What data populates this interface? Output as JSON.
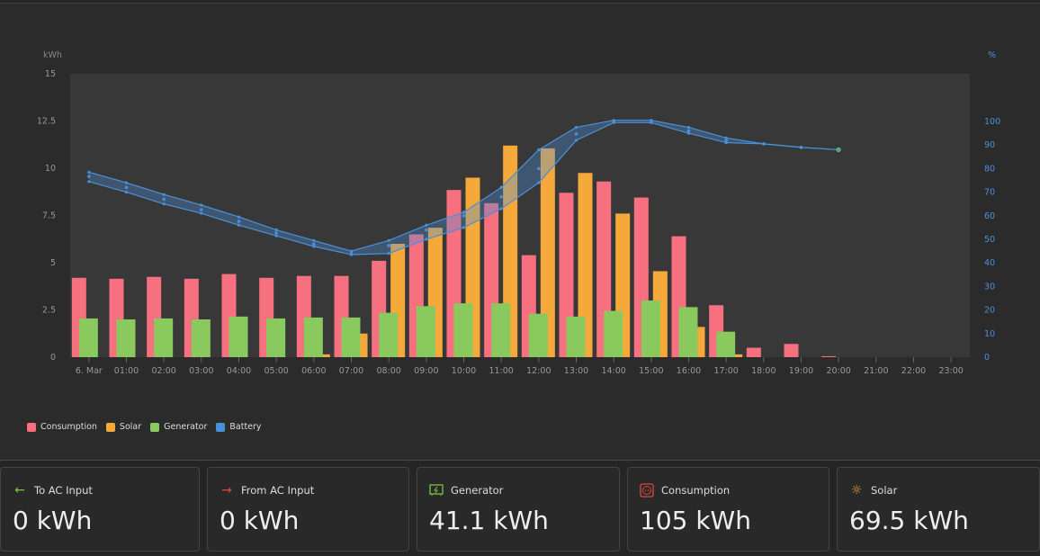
{
  "chart_data": {
    "type": "bar",
    "yleft_label": "kWh",
    "yright_label": "%",
    "yleft_ticks": [
      "0",
      "2.5",
      "5",
      "7.5",
      "10",
      "12.5",
      "15"
    ],
    "ylim": [
      0,
      15
    ],
    "yright_ticks": [
      "0",
      "10",
      "20",
      "30",
      "40",
      "50",
      "60",
      "70",
      "80",
      "90",
      "100"
    ],
    "yright_lim": [
      0,
      120
    ],
    "categories": [
      "6. Mar",
      "01:00",
      "02:00",
      "03:00",
      "04:00",
      "05:00",
      "06:00",
      "07:00",
      "08:00",
      "09:00",
      "10:00",
      "11:00",
      "12:00",
      "13:00",
      "14:00",
      "15:00",
      "16:00",
      "17:00",
      "18:00",
      "19:00",
      "20:00",
      "21:00",
      "22:00",
      "23:00"
    ],
    "series": [
      {
        "name": "Consumption",
        "color": "#f7707f",
        "values": [
          4.2,
          4.15,
          4.25,
          4.15,
          4.4,
          4.2,
          4.3,
          4.3,
          5.1,
          6.5,
          8.85,
          8.15,
          5.4,
          8.7,
          9.3,
          8.45,
          6.4,
          2.75,
          0.5,
          0.7,
          0.05,
          0,
          0,
          0
        ]
      },
      {
        "name": "Solar",
        "color": "#f6a93b",
        "values": [
          0,
          0,
          0,
          0,
          0,
          0,
          0.15,
          1.25,
          6.0,
          6.85,
          9.5,
          11.2,
          11.05,
          9.75,
          7.6,
          4.55,
          1.6,
          0.15,
          0,
          0,
          0,
          0,
          0,
          0
        ]
      },
      {
        "name": "Generator",
        "color": "#89c95d",
        "values": [
          2.05,
          2.0,
          2.05,
          2.0,
          2.15,
          2.05,
          2.1,
          2.1,
          2.35,
          2.7,
          2.85,
          2.85,
          2.3,
          2.15,
          2.45,
          3.0,
          2.65,
          1.35,
          0,
          0,
          0,
          0,
          0,
          0
        ]
      },
      {
        "name": "Battery",
        "color": "#4a90d9",
        "values": [
          76.7,
          72,
          67,
          62.6,
          57.6,
          52.7,
          48,
          44,
          47.3,
          54,
          60,
          68,
          80,
          94.7,
          100,
          100,
          96,
          92,
          90.5,
          89,
          88,
          null,
          null,
          null
        ],
        "min": [
          74.5,
          70,
          65,
          61,
          56,
          51.5,
          47,
          43.5,
          44,
          50,
          55,
          63,
          74,
          92,
          99.5,
          99.5,
          95,
          91,
          90.5,
          89,
          88,
          null,
          null,
          null
        ],
        "max": [
          78.5,
          74,
          69,
          64.5,
          59.5,
          54,
          49.5,
          45,
          49.5,
          56,
          61.5,
          72,
          88,
          97.5,
          100.5,
          100.5,
          97.5,
          93,
          90.5,
          89,
          88,
          null,
          null,
          null
        ]
      }
    ]
  },
  "cards": [
    {
      "title": "To AC Input",
      "value": "0 kWh",
      "icon": "arrow-left-icon",
      "color": "#7ac143"
    },
    {
      "title": "From AC Input",
      "value": "0 kWh",
      "icon": "arrow-right-icon",
      "color": "#e0463c"
    },
    {
      "title": "Generator",
      "value": "41.1 kWh",
      "icon": "generator-icon",
      "color": "#7ac143"
    },
    {
      "title": "Consumption",
      "value": "105 kWh",
      "icon": "outlet-icon",
      "color": "#e0463c"
    },
    {
      "title": "Solar",
      "value": "69.5 kWh",
      "icon": "sun-icon",
      "color": "#f6a93b"
    }
  ]
}
